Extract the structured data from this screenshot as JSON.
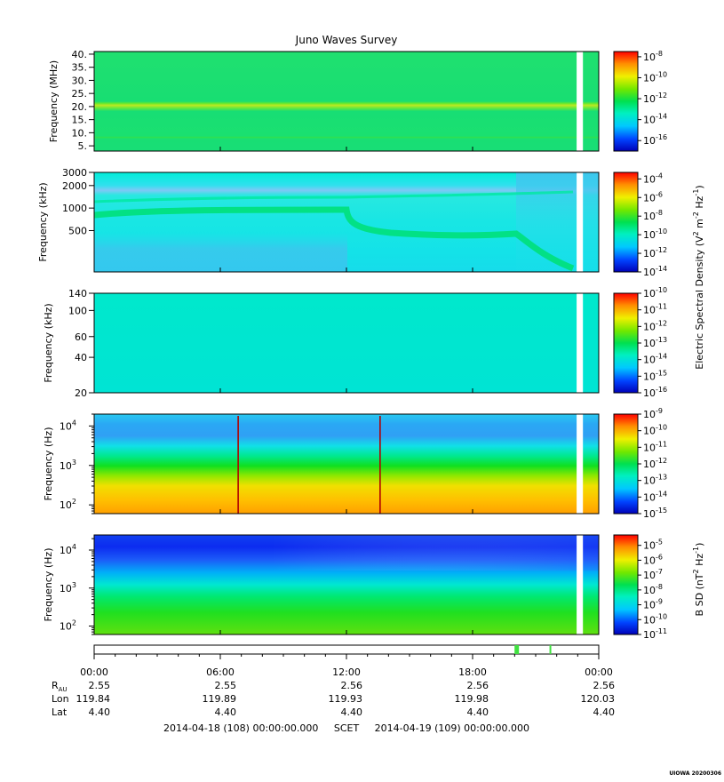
{
  "chart_data": {
    "type": "heatmap",
    "title": "Juno Waves Survey",
    "panels": [
      {
        "ylabel": "Frequency (MHz)",
        "yscale": "linear",
        "ylim": [
          3,
          41
        ],
        "yticks": [
          5,
          10,
          15,
          20,
          25,
          30,
          35,
          40
        ],
        "ytick_labels": [
          "5.",
          "10.",
          "15.",
          "20.",
          "25.",
          "30.",
          "35.",
          "40."
        ],
        "colorbar": {
          "exponents": [
            -8,
            -10,
            -12,
            -14,
            -16
          ],
          "cmin": -17,
          "cmax": -7.5,
          "label": ""
        },
        "features": [
          {
            "frequency": 21,
            "units": "MHz",
            "description": "persistent emission band"
          }
        ]
      },
      {
        "ylabel": "Frequency (kHz)",
        "yscale": "log",
        "ylim": [
          140,
          3000
        ],
        "yticks": [
          500,
          1000,
          2000,
          3000
        ],
        "ytick_labels": [
          "500",
          "1000",
          "2000",
          "3000"
        ],
        "colorbar": {
          "exponents": [
            -4,
            -6,
            -8,
            -10,
            -12,
            -14
          ],
          "cmin": -14,
          "cmax": -3.3,
          "label": ""
        }
      },
      {
        "ylabel": "Frequency (kHz)",
        "yscale": "log",
        "ylim": [
          20,
          140
        ],
        "yticks": [
          20,
          40,
          60,
          100,
          140
        ],
        "ytick_labels": [
          "20",
          "40",
          "60",
          "100",
          "140"
        ],
        "colorbar": {
          "exponents": [
            -10,
            -11,
            -12,
            -13,
            -14,
            -15,
            -16
          ],
          "cmin": -16,
          "cmax": -10,
          "label": ""
        }
      },
      {
        "ylabel": "Frequency (Hz)",
        "yscale": "log",
        "ylim": [
          60,
          20000
        ],
        "ytick_exponents": [
          4,
          3,
          2
        ],
        "colorbar": {
          "exponents": [
            -9,
            -10,
            -11,
            -12,
            -13,
            -14,
            -15
          ],
          "cmin": -15,
          "cmax": -9,
          "label": ""
        },
        "spikes_hours": [
          6.85,
          13.6
        ]
      },
      {
        "ylabel": "Frequency (Hz)",
        "yscale": "log",
        "ylim": [
          60,
          25000
        ],
        "ytick_exponents": [
          4,
          3,
          2
        ],
        "colorbar": {
          "exponents": [
            -5,
            -6,
            -7,
            -8,
            -9,
            -10,
            -11
          ],
          "cmin": -11,
          "cmax": -4.3,
          "label": ""
        }
      }
    ],
    "colorbar_group_label": {
      "base": "Electric Spectral Density (V",
      "sup1": "2",
      "mid": " m",
      "sup2": "-2",
      "mid2": " Hz",
      "sup3": "-1",
      "end": ")"
    },
    "colorbar_b_label": {
      "base": "B SD (nT",
      "sup1": "2",
      "mid": " Hz",
      "sup2": "-1",
      "end": ")"
    },
    "data_gap_hours": [
      22.95,
      23.25
    ],
    "x": {
      "range_hours": [
        0,
        24
      ],
      "ticks_hours": [
        0,
        6,
        12,
        18,
        24
      ],
      "tick_labels": [
        "00:00",
        "06:00",
        "12:00",
        "18:00",
        "00:00"
      ]
    },
    "ephemeris": [
      {
        "label": "R",
        "label_sub": "AU",
        "values": [
          "2.55",
          "2.55",
          "2.56",
          "2.56",
          "2.56"
        ]
      },
      {
        "label": "Lon",
        "values": [
          "119.84",
          "119.89",
          "119.93",
          "119.98",
          "120.03"
        ]
      },
      {
        "label": "Lat",
        "values": [
          "4.40",
          "4.40",
          "4.40",
          "4.40",
          "4.40"
        ]
      }
    ],
    "mode_bar_marks_hours": [
      20.1,
      21.7
    ],
    "footer": "2014-04-18 (108) 00:00:00.000     SCET     2014-04-19 (109) 00:00:00.000",
    "watermark": "UIOWA 20200306"
  }
}
